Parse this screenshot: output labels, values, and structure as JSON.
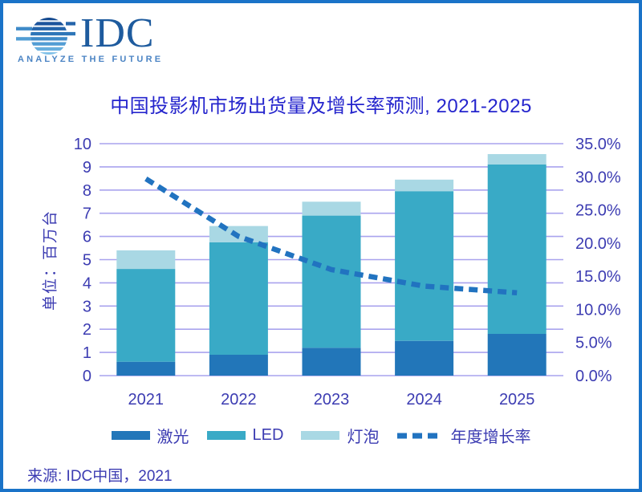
{
  "logo": {
    "name": "IDC",
    "tagline": "ANALYZE THE FUTURE"
  },
  "title": "中国投影机市场出货量及增长率预测, 2021-2025",
  "source": "来源: IDC中国，2021",
  "colors": {
    "border": "#1a73c8",
    "title_text": "#2525cd",
    "axis_text": "#3c3cb2",
    "gridline": "#a9a3ee",
    "laser_bar": "#2276b9",
    "led_bar": "#39aac6",
    "lamp_bar": "#a9d8e4",
    "growth_line": "#2173c0",
    "logo_blue": "#1e5b9e",
    "tagline_blue": "#4b84c4"
  },
  "chart_data": {
    "type": "bar",
    "subtype": "stacked-columns-with-dashed-line-overlay",
    "title": "中国投影机市场出货量及增长率预测, 2021-2025",
    "categories": [
      "2021",
      "2022",
      "2023",
      "2024",
      "2025"
    ],
    "series": [
      {
        "name": "激光",
        "type": "bar",
        "axis": "left",
        "color": "#2276b9",
        "values": [
          0.6,
          0.9,
          1.2,
          1.5,
          1.8
        ]
      },
      {
        "name": "LED",
        "type": "bar",
        "axis": "left",
        "color": "#39aac6",
        "values": [
          4.0,
          4.85,
          5.7,
          6.45,
          7.3
        ]
      },
      {
        "name": "灯泡",
        "type": "bar",
        "axis": "left",
        "color": "#a9d8e4",
        "values": [
          0.8,
          0.7,
          0.6,
          0.5,
          0.45
        ]
      },
      {
        "name": "年度增长率",
        "type": "line",
        "line_style": "dashed",
        "axis": "right",
        "color": "#2173c0",
        "values": [
          29.7,
          21.0,
          16.0,
          13.5,
          12.5
        ]
      }
    ],
    "stacked_totals": [
      5.4,
      6.45,
      7.5,
      8.45,
      9.55
    ],
    "left_axis": {
      "label": "单位：百万台",
      "min": 0,
      "max": 10,
      "step": 1,
      "ticks": [
        "0",
        "1",
        "2",
        "3",
        "4",
        "5",
        "6",
        "7",
        "8",
        "9",
        "10"
      ]
    },
    "right_axis": {
      "min": 0,
      "max": 35,
      "step": 5,
      "ticks": [
        "0.0%",
        "5.0%",
        "10.0%",
        "15.0%",
        "20.0%",
        "25.0%",
        "30.0%",
        "35.0%"
      ]
    },
    "grid": true,
    "legend_position": "bottom"
  }
}
